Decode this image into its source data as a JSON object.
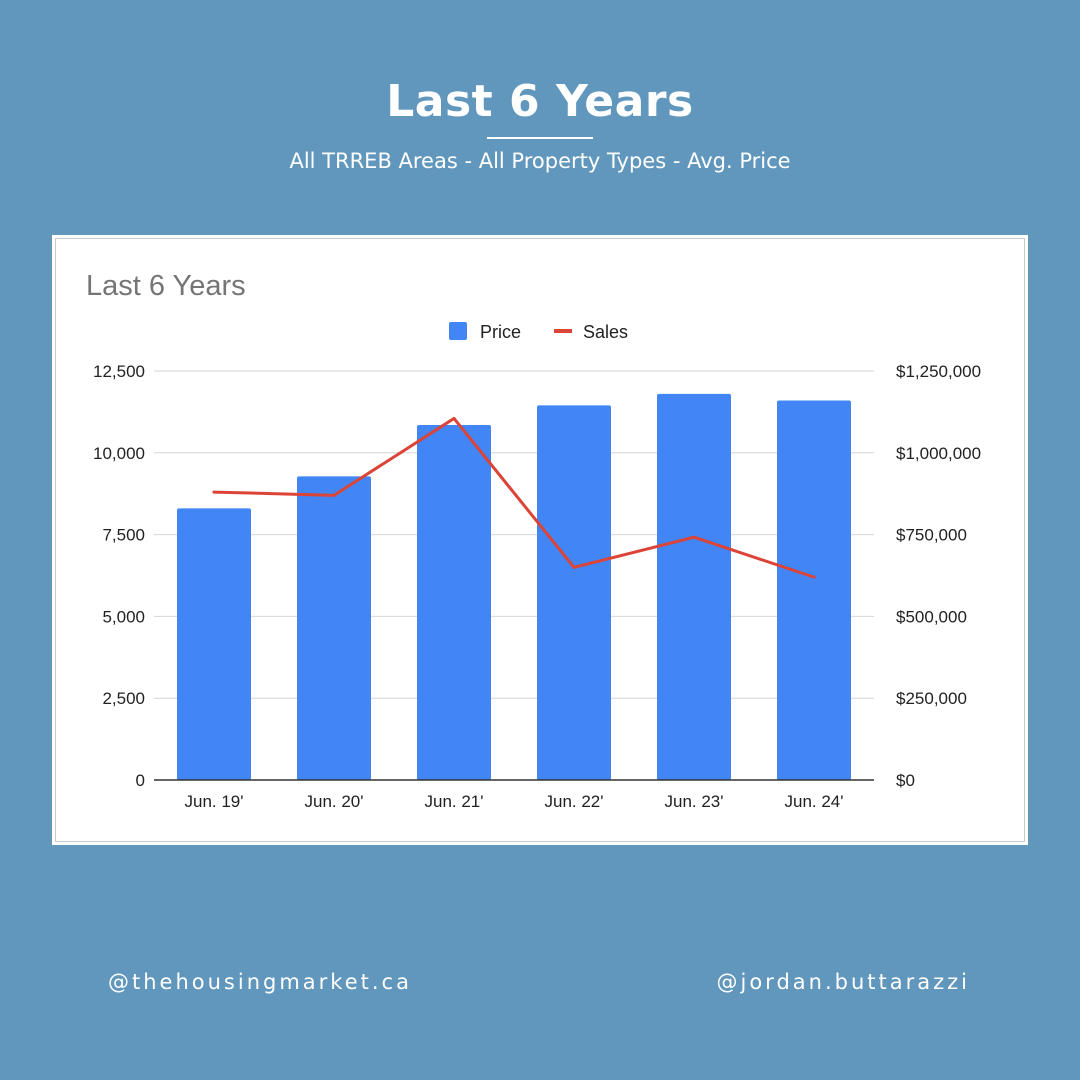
{
  "header": {
    "title": "Last 6 Years",
    "subtitle": "All TRREB Areas - All Property Types - Avg. Price"
  },
  "footer": {
    "left_handle": "@thehousingmarket.ca",
    "right_handle": "@jordan.buttarazzi"
  },
  "colors": {
    "background": "#6197bd",
    "price_bar": "#4285f4",
    "sales_line": "#db4437"
  },
  "chart_data": {
    "type": "bar",
    "title": "Last 6 Years",
    "categories": [
      "Jun. 19'",
      "Jun. 20'",
      "Jun. 21'",
      "Jun. 22'",
      "Jun. 23'",
      "Jun. 24'"
    ],
    "series": [
      {
        "name": "Price",
        "type": "bar",
        "axis": "right",
        "values": [
          830000,
          928000,
          1085000,
          1145000,
          1180000,
          1160000
        ]
      },
      {
        "name": "Sales",
        "type": "line",
        "axis": "left",
        "values": [
          8800,
          8700,
          11050,
          6500,
          7420,
          6200
        ]
      }
    ],
    "y_left": {
      "ylim": [
        0,
        12500
      ],
      "ticks": [
        0,
        2500,
        5000,
        7500,
        10000,
        12500
      ],
      "tick_labels": [
        "0",
        "2,500",
        "5,000",
        "7,500",
        "10,000",
        "12,500"
      ]
    },
    "y_right": {
      "ylim": [
        0,
        1250000
      ],
      "ticks": [
        0,
        250000,
        500000,
        750000,
        1000000,
        1250000
      ],
      "tick_labels": [
        "$0",
        "$250,000",
        "$500,000",
        "$750,000",
        "$1,000,000",
        "$1,250,000"
      ]
    },
    "legend": {
      "position": "top-center",
      "entries": [
        "Price",
        "Sales"
      ]
    },
    "grid": true
  }
}
